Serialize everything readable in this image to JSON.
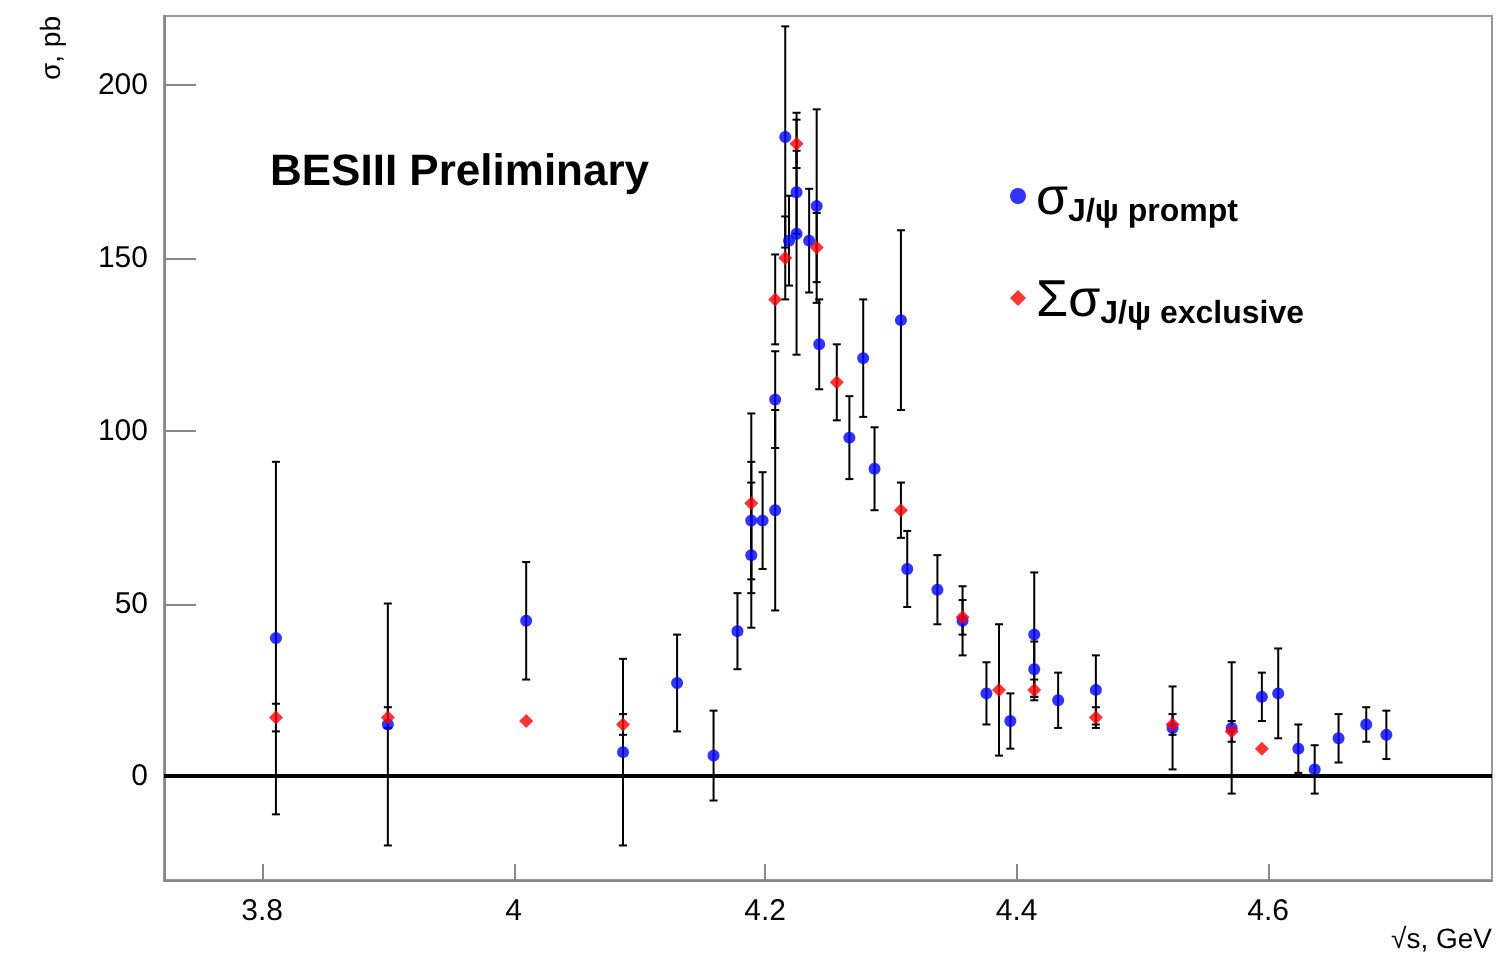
{
  "chart_data": {
    "type": "scatter",
    "xlabel": "√s, GeV",
    "ylabel": "σ, pb",
    "annotations": [
      "BESIII Preliminary"
    ],
    "xlim": [
      3.722,
      4.778
    ],
    "xticks": [
      3.8,
      4,
      4.2,
      4.4,
      4.6
    ],
    "ylim": [
      -30,
      220
    ],
    "yticks": [
      0,
      50,
      100,
      150,
      200
    ],
    "grid": false,
    "legend": "top right",
    "ref_lines": [
      {
        "axis": "y",
        "value": 0,
        "color": "#000000",
        "line_style": "solid"
      }
    ],
    "series": [
      {
        "name": "σ$_{J/ψ prompt}$",
        "color": "#0000ff",
        "marker": "circle",
        "x": [
          3.811,
          3.9,
          4.01,
          4.087,
          4.13,
          4.159,
          4.178,
          4.189,
          4.189,
          4.198,
          4.208,
          4.208,
          4.216,
          4.219,
          4.225,
          4.225,
          4.235,
          4.241,
          4.243,
          4.267,
          4.278,
          4.287,
          4.308,
          4.313,
          4.337,
          4.357,
          4.376,
          4.395,
          4.414,
          4.414,
          4.433,
          4.463,
          4.524,
          4.571,
          4.595,
          4.608,
          4.624,
          4.637,
          4.656,
          4.678,
          4.694
        ],
        "values": [
          40,
          15,
          45,
          7,
          27,
          6,
          42,
          64,
          74,
          74,
          109,
          77,
          185,
          155,
          169,
          157,
          155,
          165,
          125,
          98,
          121,
          89,
          132,
          60,
          54,
          45,
          24,
          16,
          41,
          31,
          22,
          25,
          14,
          14,
          23,
          24,
          8,
          2,
          11,
          15,
          12
        ],
        "errors": [
          51,
          35,
          17,
          27,
          14,
          13,
          11,
          21,
          17,
          14,
          14,
          29,
          32,
          13,
          12,
          35,
          15,
          28,
          13,
          12,
          17,
          12,
          26,
          11,
          10,
          10,
          9,
          8,
          18,
          8,
          8,
          10,
          12,
          19,
          7,
          13,
          7,
          7,
          7,
          5,
          7
        ]
      },
      {
        "name": "Σσ$_{J/ψ exclusive}$",
        "color": "#ff0000",
        "marker": "diamond",
        "x": [
          3.811,
          3.9,
          4.01,
          4.087,
          4.189,
          4.208,
          4.216,
          4.225,
          4.241,
          4.257,
          4.308,
          4.357,
          4.386,
          4.414,
          4.463,
          4.524,
          4.571,
          4.595
        ],
        "values": [
          17,
          17,
          16,
          15,
          79,
          138,
          150,
          183,
          153,
          114,
          77,
          46,
          25,
          25,
          17,
          15,
          13,
          8
        ],
        "errors": [
          4,
          3,
          null,
          3,
          26,
          13,
          12,
          7,
          10,
          11,
          8,
          5,
          19,
          3,
          3,
          3,
          3,
          null
        ]
      }
    ]
  }
}
